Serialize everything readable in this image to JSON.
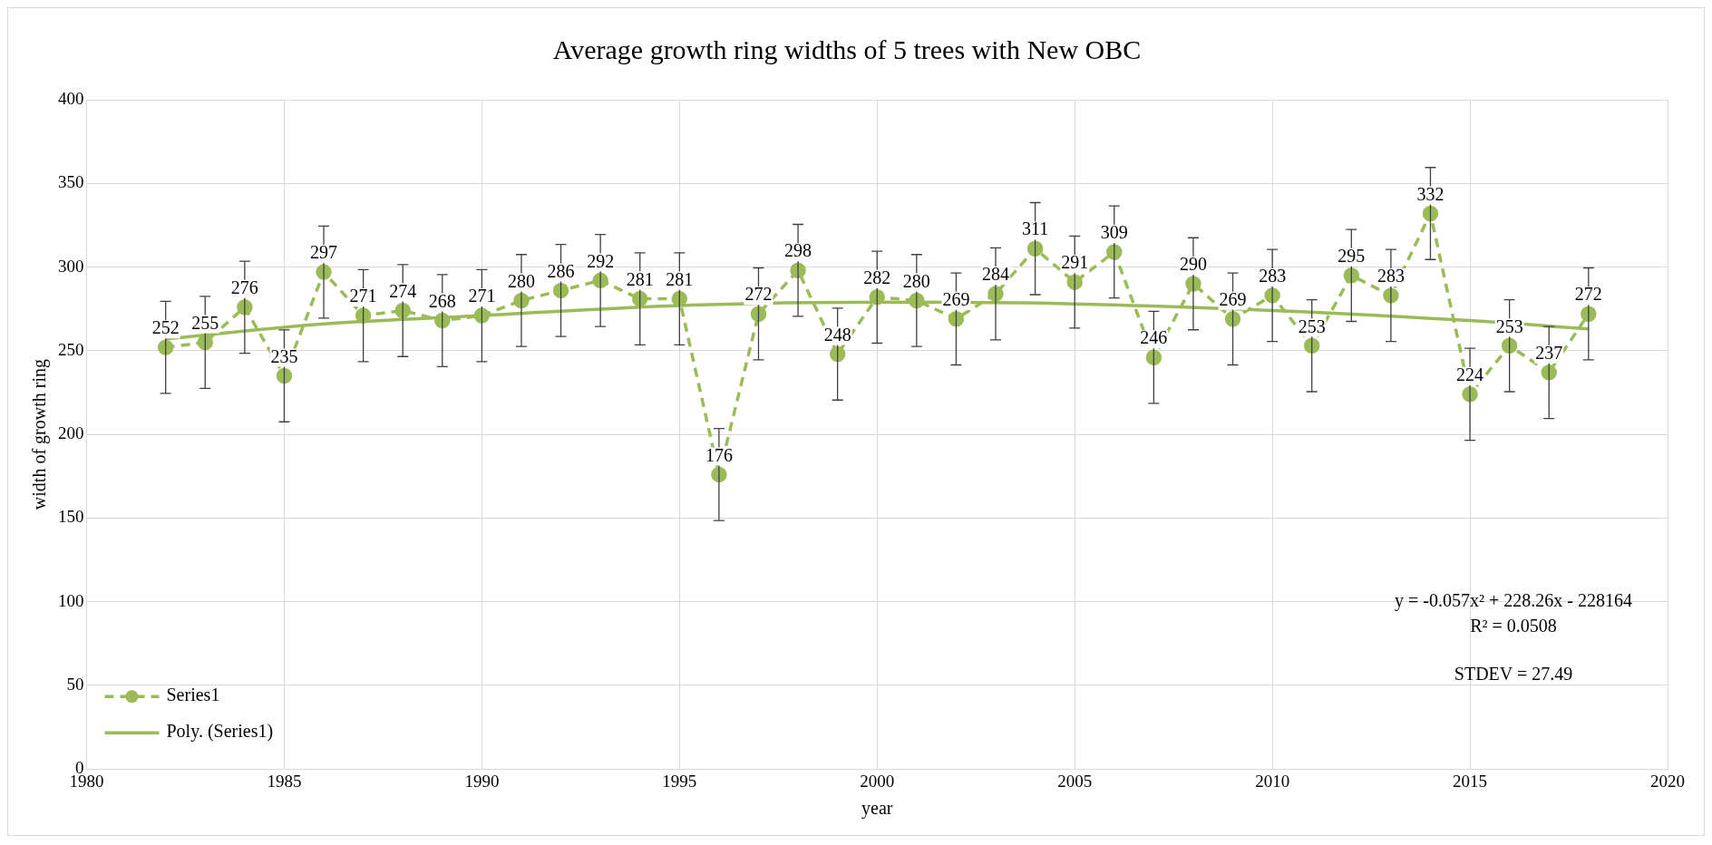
{
  "chart_data": {
    "type": "line",
    "title": "Average growth ring widths of 5 trees with New OBC",
    "xlabel": "year",
    "ylabel": "width of growth ring",
    "x": [
      1982,
      1983,
      1984,
      1985,
      1986,
      1987,
      1988,
      1989,
      1990,
      1991,
      1992,
      1993,
      1994,
      1995,
      1996,
      1997,
      1998,
      1999,
      2000,
      2001,
      2002,
      2003,
      2004,
      2005,
      2006,
      2007,
      2008,
      2009,
      2010,
      2011,
      2012,
      2013,
      2014,
      2015,
      2016,
      2017,
      2018
    ],
    "series": [
      {
        "name": "Series1",
        "color": "#9bbb59",
        "line_style": "dashed",
        "marker": "circle",
        "values": [
          252,
          255,
          276,
          235,
          297,
          271,
          274,
          268,
          271,
          280,
          286,
          292,
          281,
          281,
          176,
          272,
          298,
          248,
          282,
          280,
          269,
          284,
          311,
          291,
          309,
          246,
          290,
          269,
          283,
          253,
          295,
          283,
          332,
          224,
          253,
          237,
          272
        ],
        "errors": [
          27.49,
          27.49,
          27.49,
          27.49,
          27.49,
          27.49,
          27.49,
          27.49,
          27.49,
          27.49,
          27.49,
          27.49,
          27.49,
          27.49,
          27.49,
          27.49,
          27.49,
          27.49,
          27.49,
          27.49,
          27.49,
          27.49,
          27.49,
          27.49,
          27.49,
          27.49,
          27.49,
          27.49,
          27.49,
          27.49,
          27.49,
          27.49,
          27.49,
          27.49,
          27.49,
          27.49,
          27.49
        ]
      },
      {
        "name": "Poly. (Series1)",
        "type": "line",
        "color": "#9bbb59",
        "line_style": "solid",
        "marker": "none",
        "x": [
          1982,
          1986,
          1990,
          1995,
          2000,
          2005,
          2010,
          2015,
          2018
        ],
        "values": [
          257,
          266,
          271,
          277,
          279,
          278,
          274,
          268,
          263
        ]
      }
    ],
    "value_labels": [
      "252",
      "255",
      "276",
      "235",
      "297",
      "271",
      "274",
      "268",
      "271",
      "280",
      "286",
      "292",
      "281",
      "281",
      "176",
      "272",
      "298",
      "248",
      "282",
      "280",
      "269",
      "284",
      "311",
      "291",
      "309",
      "246",
      "290",
      "269",
      "283",
      "253",
      "295",
      "283",
      "332",
      "224",
      "253",
      "237",
      "272"
    ],
    "xlim": [
      1980,
      2020
    ],
    "xticks": [
      1980,
      1985,
      1990,
      1995,
      2000,
      2005,
      2010,
      2015,
      2020
    ],
    "ylim": [
      0,
      400
    ],
    "yticks": [
      0,
      50,
      100,
      150,
      200,
      250,
      300,
      350,
      400
    ],
    "grid": true,
    "legend": "bottom left",
    "annotations": [
      "y = -0.057x² + 228.26x - 228164",
      "R² = 0.0508",
      "STDEV = 27.49"
    ]
  }
}
